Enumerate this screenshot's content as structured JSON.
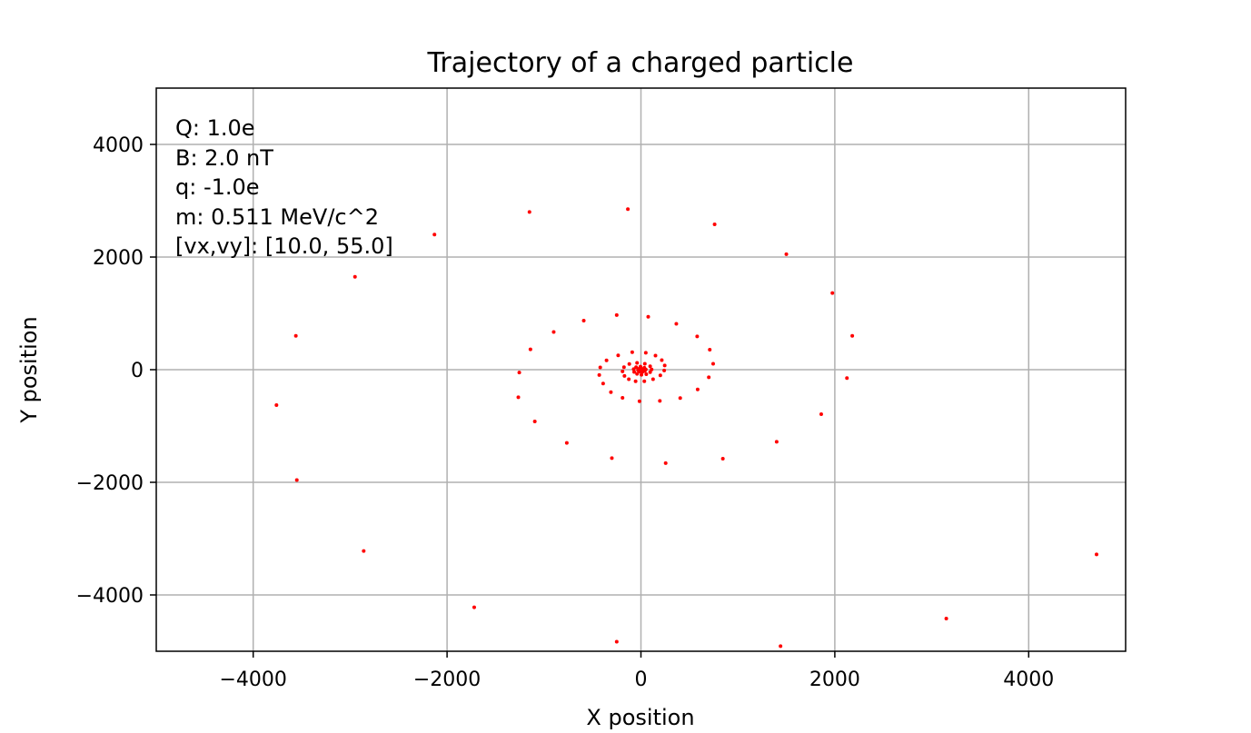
{
  "chart_data": {
    "type": "scatter",
    "title": "Trajectory of a charged particle",
    "xlabel": "X position",
    "ylabel": "Y position",
    "xlim": [
      -5000,
      5000
    ],
    "ylim": [
      -5000,
      5000
    ],
    "grid": true,
    "marker_color": "#ff0000",
    "x_ticks": [
      -4000,
      -2000,
      0,
      2000,
      4000
    ],
    "y_ticks": [
      -4000,
      -2000,
      0,
      2000,
      4000
    ],
    "x_tick_labels": [
      "−4000",
      "−2000",
      "0",
      "2000",
      "4000"
    ],
    "y_tick_labels": [
      "−4000",
      "−2000",
      "0",
      "2000",
      "4000"
    ],
    "annotation": [
      "Q: 1.0e",
      "B: 2.0 nT",
      "q: -1.0e",
      "m: 0.511 MeV/c^2",
      "[vx,vy]: [10.0, 55.0]"
    ],
    "points": [
      [
        -2130,
        2400
      ],
      [
        -1150,
        2800
      ],
      [
        -135,
        2850
      ],
      [
        760,
        2580
      ],
      [
        1500,
        2050
      ],
      [
        1975,
        1360
      ],
      [
        2180,
        600
      ],
      [
        2125,
        -150
      ],
      [
        1860,
        -790
      ],
      [
        1400,
        -1280
      ],
      [
        845,
        -1580
      ],
      [
        255,
        -1660
      ],
      [
        -300,
        -1570
      ],
      [
        -765,
        -1300
      ],
      [
        -1095,
        -920
      ],
      [
        -1265,
        -490
      ],
      [
        -1255,
        -50
      ],
      [
        -1140,
        360
      ],
      [
        -900,
        670
      ],
      [
        -590,
        870
      ],
      [
        -250,
        970
      ],
      [
        75,
        940
      ],
      [
        365,
        815
      ],
      [
        580,
        590
      ],
      [
        710,
        355
      ],
      [
        745,
        105
      ],
      [
        700,
        -135
      ],
      [
        585,
        -350
      ],
      [
        405,
        -505
      ],
      [
        195,
        -555
      ],
      [
        -15,
        -560
      ],
      [
        -190,
        -500
      ],
      [
        -310,
        -400
      ],
      [
        -390,
        -245
      ],
      [
        -430,
        -95
      ],
      [
        -420,
        40
      ],
      [
        -355,
        165
      ],
      [
        -235,
        255
      ],
      [
        -90,
        310
      ],
      [
        50,
        300
      ],
      [
        150,
        250
      ],
      [
        215,
        170
      ],
      [
        245,
        75
      ],
      [
        240,
        -15
      ],
      [
        200,
        -100
      ],
      [
        125,
        -170
      ],
      [
        35,
        -205
      ],
      [
        -55,
        -205
      ],
      [
        -125,
        -170
      ],
      [
        -170,
        -110
      ],
      [
        -190,
        -30
      ],
      [
        -175,
        45
      ],
      [
        -120,
        100
      ],
      [
        -40,
        120
      ],
      [
        40,
        105
      ],
      [
        95,
        60
      ],
      [
        110,
        5
      ],
      [
        95,
        -45
      ],
      [
        55,
        -80
      ],
      [
        5,
        -90
      ],
      [
        -40,
        -75
      ],
      [
        -70,
        -40
      ],
      [
        -75,
        10
      ],
      [
        -50,
        45
      ],
      [
        -5,
        55
      ],
      [
        35,
        35
      ],
      [
        50,
        5
      ],
      [
        40,
        -25
      ],
      [
        15,
        -40
      ],
      [
        -15,
        -35
      ],
      [
        -30,
        -10
      ],
      [
        -25,
        15
      ],
      [
        0,
        20
      ],
      [
        20,
        10
      ],
      [
        20,
        -5
      ],
      [
        5,
        -15
      ],
      [
        -5,
        -5
      ],
      [
        0,
        0
      ],
      [
        -2950,
        1650
      ],
      [
        -3560,
        600
      ],
      [
        -3760,
        -630
      ],
      [
        -3550,
        -1960
      ],
      [
        -2860,
        -3220
      ],
      [
        -1720,
        -4220
      ],
      [
        -250,
        -4830
      ],
      [
        1440,
        -4910
      ],
      [
        3150,
        -4420
      ],
      [
        4700,
        -3280
      ]
    ]
  }
}
